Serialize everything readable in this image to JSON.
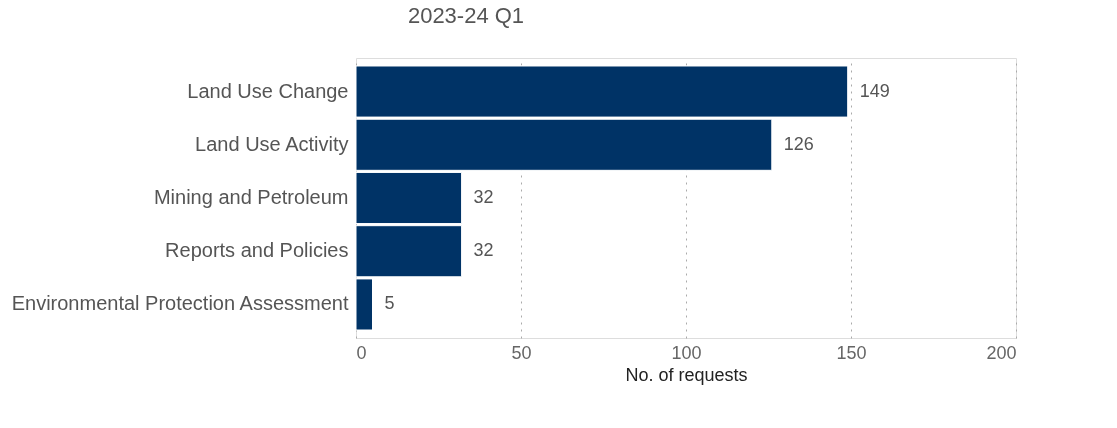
{
  "chart_data": {
    "type": "bar",
    "orientation": "horizontal",
    "title": "2023-24 Q1",
    "xlabel": "No. of requests",
    "categories": [
      "Land Use Change",
      "Land Use Activity",
      "Mining and Petroleum",
      "Reports and Policies",
      "Environmental Protection Assessment"
    ],
    "values": [
      149,
      126,
      32,
      32,
      5
    ],
    "color": "#003366",
    "xlim": [
      0,
      200
    ],
    "xticks": [
      0,
      50,
      100,
      150,
      200
    ],
    "grid": "x",
    "data_labels": true
  }
}
